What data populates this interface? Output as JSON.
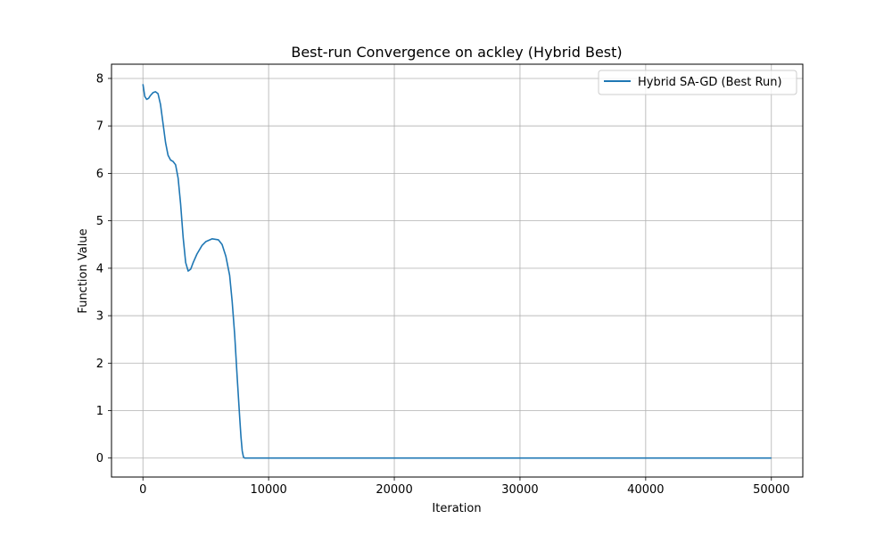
{
  "chart_data": {
    "type": "line",
    "title": "Best-run Convergence on ackley (Hybrid Best)",
    "xlabel": "Iteration",
    "ylabel": "Function Value",
    "xlim": [
      -2500,
      52500
    ],
    "ylim": [
      -0.4,
      8.3
    ],
    "xticks": [
      0,
      10000,
      20000,
      30000,
      40000,
      50000
    ],
    "xtick_labels": [
      "0",
      "10000",
      "20000",
      "30000",
      "40000",
      "50000"
    ],
    "yticks": [
      0,
      1,
      2,
      3,
      4,
      5,
      6,
      7,
      8
    ],
    "ytick_labels": [
      "0",
      "1",
      "2",
      "3",
      "4",
      "5",
      "6",
      "7",
      "8"
    ],
    "grid": true,
    "legend": "top-right",
    "series": [
      {
        "name": "Hybrid SA-GD (Best Run)",
        "color": "#1f77b4",
        "x": [
          0,
          150,
          300,
          450,
          600,
          800,
          1000,
          1200,
          1400,
          1600,
          1800,
          2000,
          2200,
          2400,
          2600,
          2800,
          3000,
          3200,
          3400,
          3600,
          3800,
          4000,
          4300,
          4700,
          5000,
          5500,
          6000,
          6300,
          6600,
          6900,
          7100,
          7300,
          7500,
          7700,
          7800,
          7900,
          8000,
          8100,
          9000,
          10000,
          20000,
          30000,
          40000,
          50000
        ],
        "y": [
          7.88,
          7.62,
          7.56,
          7.58,
          7.64,
          7.7,
          7.72,
          7.68,
          7.45,
          7.05,
          6.65,
          6.38,
          6.28,
          6.25,
          6.18,
          5.9,
          5.35,
          4.65,
          4.12,
          3.94,
          3.98,
          4.12,
          4.3,
          4.48,
          4.56,
          4.62,
          4.6,
          4.5,
          4.25,
          3.85,
          3.3,
          2.6,
          1.7,
          0.85,
          0.45,
          0.15,
          0.02,
          0.0,
          0.0,
          0.0,
          0.0,
          0.0,
          0.0,
          0.0
        ]
      }
    ]
  }
}
